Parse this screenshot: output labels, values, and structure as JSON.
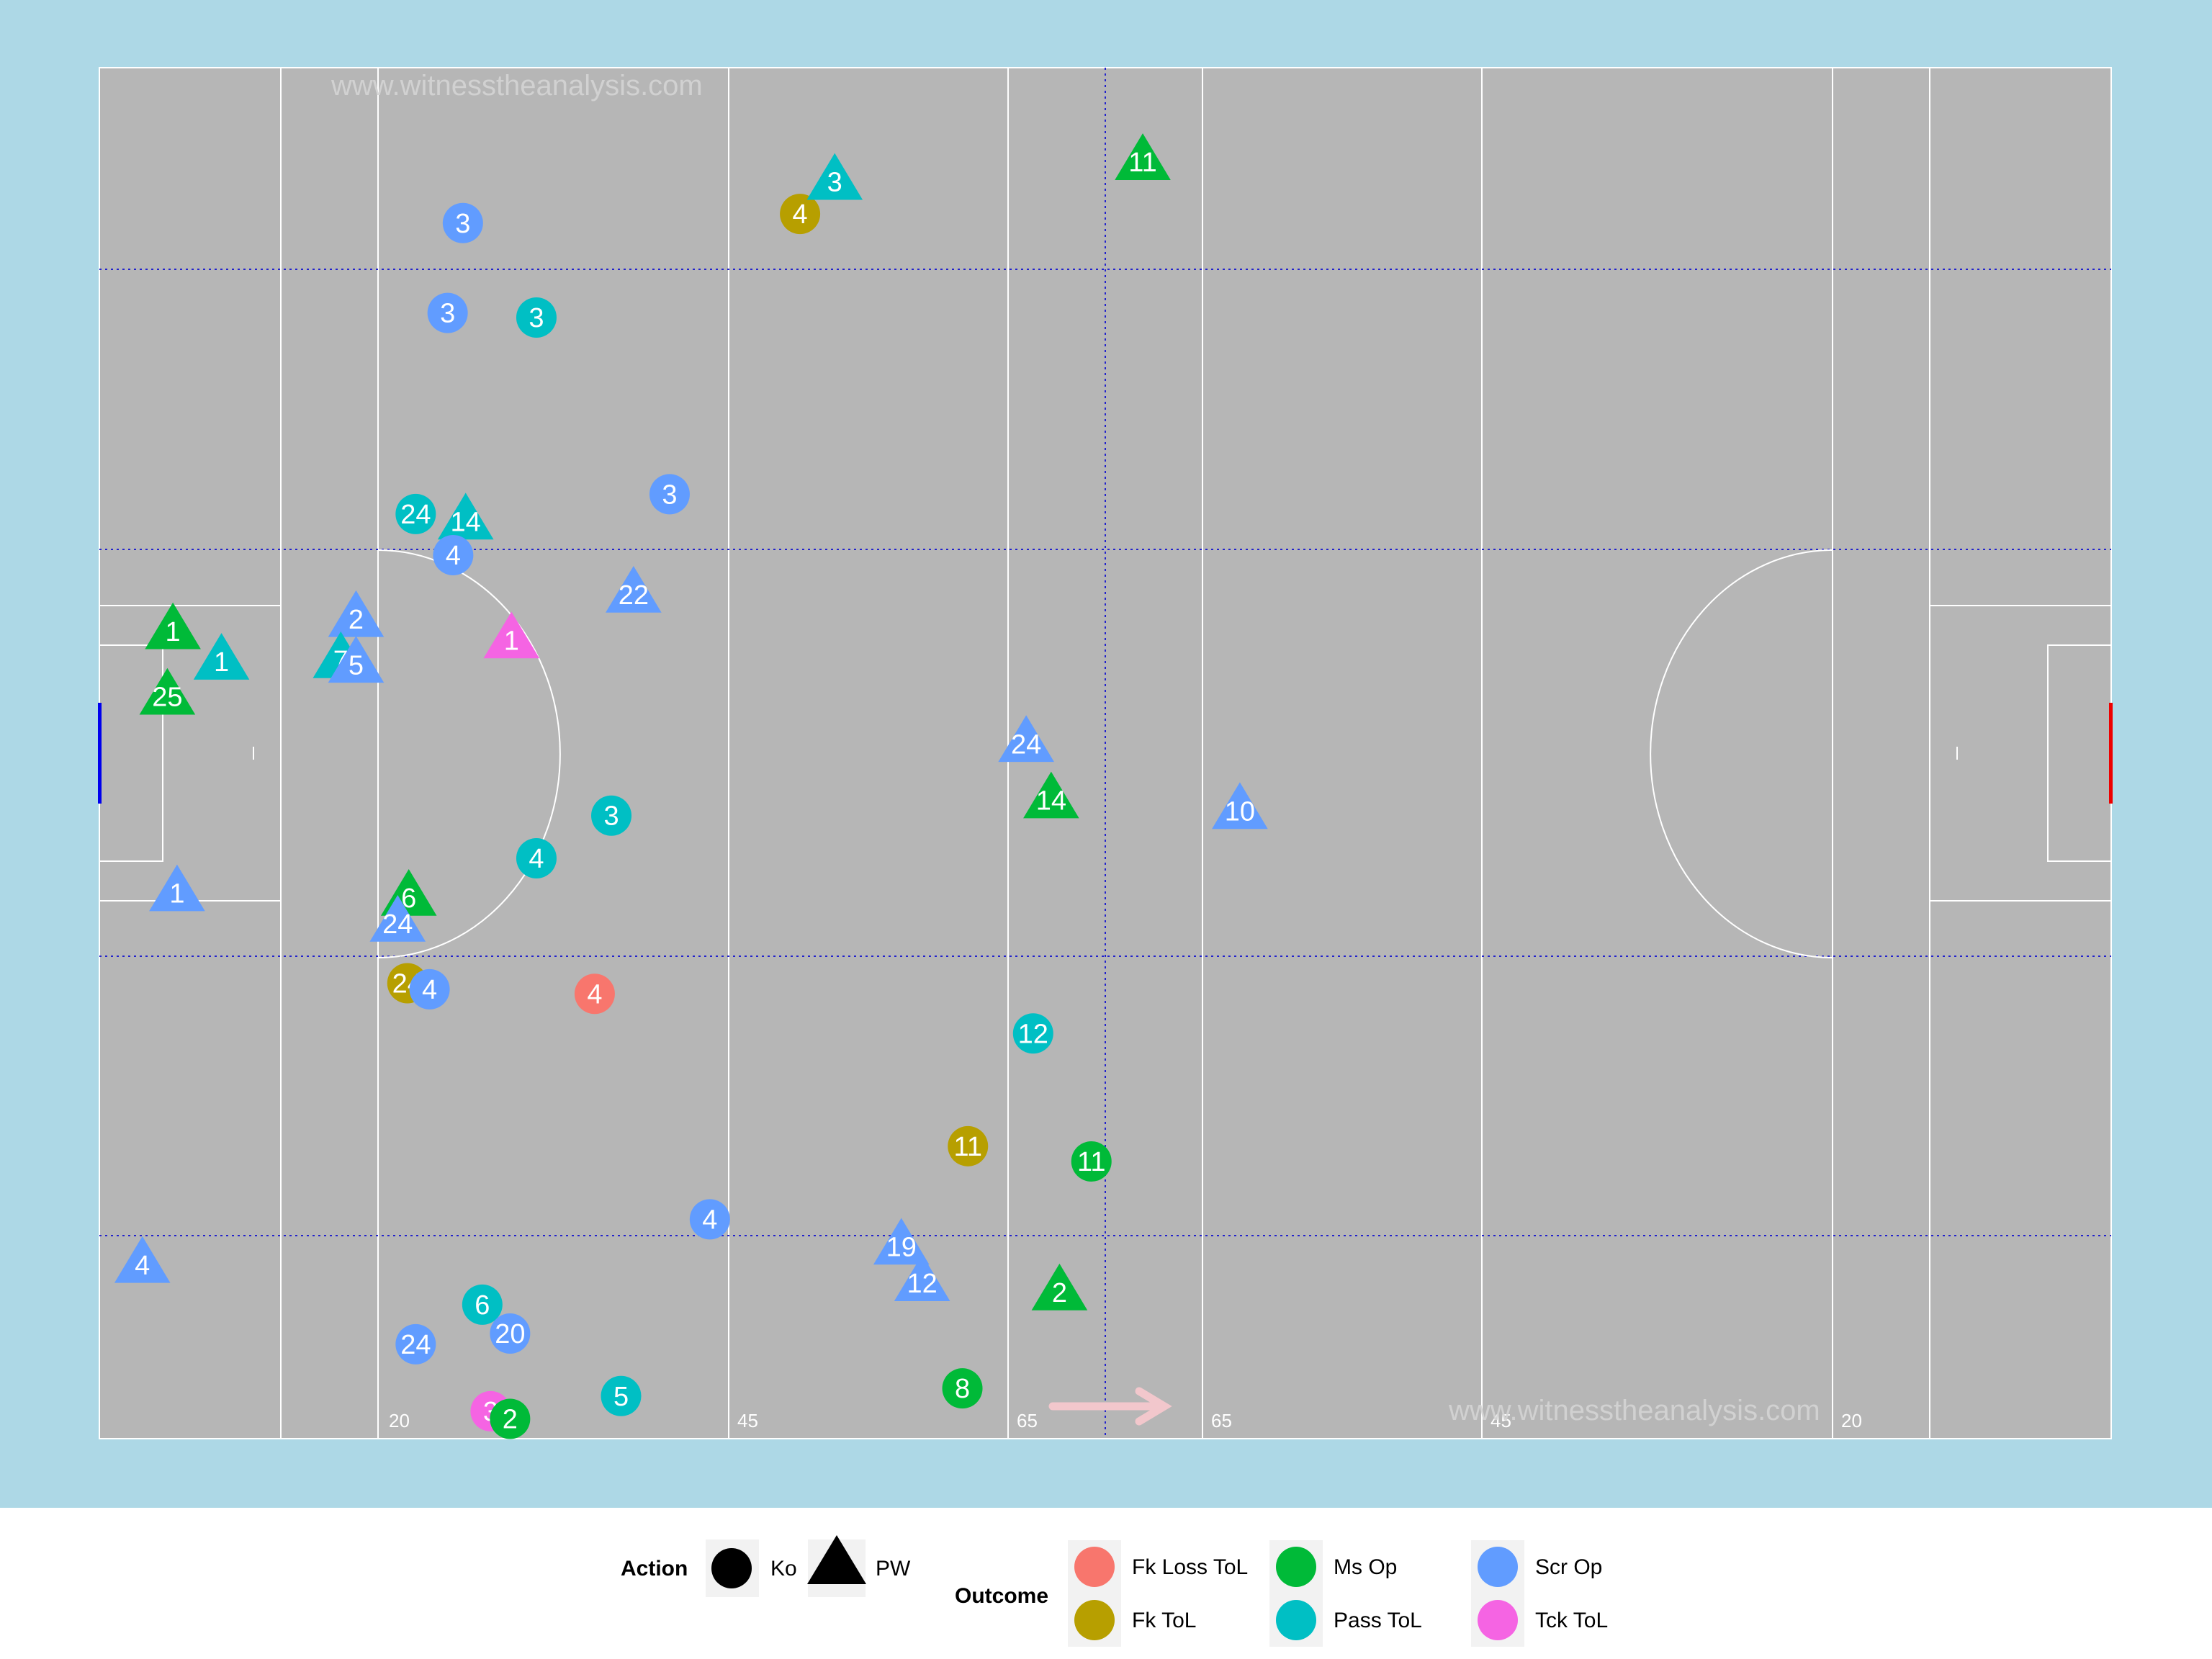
{
  "watermark": "www.witnesstheanalysis.com",
  "chart_data": {
    "type": "scatter",
    "xlim": [
      0,
      145
    ],
    "ylim": [
      0,
      90
    ],
    "direction_arrow": "left-to-right",
    "distance_markers": [
      "20",
      "45",
      "65",
      "65",
      "45",
      "20"
    ],
    "colors": {
      "Fk Loss ToL": "#F8766D",
      "Fk ToL": "#B79F00",
      "Ms Op": "#00BA38",
      "Pass ToL": "#00BFC4",
      "Scr Op": "#619CFF",
      "Tck ToL": "#F564E3"
    },
    "legend": {
      "action_title": "Action",
      "action_items": [
        {
          "label": "Ko",
          "shape": "circle"
        },
        {
          "label": "PW",
          "shape": "triangle"
        }
      ],
      "outcome_title": "Outcome",
      "outcome_items": [
        "Fk Loss ToL",
        "Fk ToL",
        "Ms Op",
        "Pass ToL",
        "Scr Op",
        "Tck ToL"
      ]
    },
    "points": [
      {
        "x": 26.2,
        "y": 79.8,
        "label": "3",
        "action": "Ko",
        "outcome": "Scr Op"
      },
      {
        "x": 25.1,
        "y": 73.9,
        "label": "3",
        "action": "Ko",
        "outcome": "Scr Op"
      },
      {
        "x": 31.5,
        "y": 73.6,
        "label": "3",
        "action": "Ko",
        "outcome": "Pass ToL"
      },
      {
        "x": 50.5,
        "y": 80.4,
        "label": "4",
        "action": "Ko",
        "outcome": "Fk ToL"
      },
      {
        "x": 53.0,
        "y": 82.5,
        "label": "3",
        "action": "PW",
        "outcome": "Pass ToL"
      },
      {
        "x": 75.2,
        "y": 83.8,
        "label": "11",
        "action": "PW",
        "outcome": "Ms Op"
      },
      {
        "x": 41.1,
        "y": 62.0,
        "label": "3",
        "action": "Ko",
        "outcome": "Scr Op"
      },
      {
        "x": 22.8,
        "y": 60.7,
        "label": "24",
        "action": "Ko",
        "outcome": "Pass ToL"
      },
      {
        "x": 26.4,
        "y": 60.2,
        "label": "14",
        "action": "PW",
        "outcome": "Pass ToL"
      },
      {
        "x": 25.5,
        "y": 58.0,
        "label": "4",
        "action": "Ko",
        "outcome": "Scr Op"
      },
      {
        "x": 38.5,
        "y": 55.4,
        "label": "22",
        "action": "PW",
        "outcome": "Scr Op"
      },
      {
        "x": 18.5,
        "y": 53.8,
        "label": "2",
        "action": "PW",
        "outcome": "Scr Op"
      },
      {
        "x": 29.7,
        "y": 52.4,
        "label": "1",
        "action": "PW",
        "outcome": "Tck ToL"
      },
      {
        "x": 5.3,
        "y": 53.0,
        "label": "1",
        "action": "PW",
        "outcome": "Ms Op"
      },
      {
        "x": 8.8,
        "y": 51.0,
        "label": "1",
        "action": "PW",
        "outcome": "Pass ToL"
      },
      {
        "x": 17.4,
        "y": 51.1,
        "label": "7",
        "action": "PW",
        "outcome": "Pass ToL"
      },
      {
        "x": 18.5,
        "y": 50.8,
        "label": "5",
        "action": "PW",
        "outcome": "Scr Op"
      },
      {
        "x": 4.9,
        "y": 48.7,
        "label": "25",
        "action": "PW",
        "outcome": "Ms Op"
      },
      {
        "x": 66.8,
        "y": 45.6,
        "label": "24",
        "action": "PW",
        "outcome": "Scr Op"
      },
      {
        "x": 68.6,
        "y": 41.9,
        "label": "14",
        "action": "PW",
        "outcome": "Ms Op"
      },
      {
        "x": 82.2,
        "y": 41.2,
        "label": "10",
        "action": "PW",
        "outcome": "Scr Op"
      },
      {
        "x": 36.9,
        "y": 40.9,
        "label": "3",
        "action": "Ko",
        "outcome": "Pass ToL"
      },
      {
        "x": 31.5,
        "y": 38.1,
        "label": "4",
        "action": "Ko",
        "outcome": "Pass ToL"
      },
      {
        "x": 22.3,
        "y": 35.5,
        "label": "6",
        "action": "PW",
        "outcome": "Ms Op"
      },
      {
        "x": 21.5,
        "y": 33.8,
        "label": "24",
        "action": "PW",
        "outcome": "Scr Op"
      },
      {
        "x": 5.6,
        "y": 35.8,
        "label": "1",
        "action": "PW",
        "outcome": "Scr Op"
      },
      {
        "x": 22.2,
        "y": 29.9,
        "label": "24",
        "action": "Ko",
        "outcome": "Fk ToL"
      },
      {
        "x": 23.8,
        "y": 29.5,
        "label": "4",
        "action": "Ko",
        "outcome": "Scr Op"
      },
      {
        "x": 35.7,
        "y": 29.2,
        "label": "4",
        "action": "Ko",
        "outcome": "Fk Loss ToL"
      },
      {
        "x": 67.3,
        "y": 26.6,
        "label": "12",
        "action": "Ko",
        "outcome": "Pass ToL"
      },
      {
        "x": 62.6,
        "y": 19.2,
        "label": "11",
        "action": "Ko",
        "outcome": "Fk ToL"
      },
      {
        "x": 71.5,
        "y": 18.2,
        "label": "11",
        "action": "Ko",
        "outcome": "Ms Op"
      },
      {
        "x": 44.0,
        "y": 14.4,
        "label": "4",
        "action": "Ko",
        "outcome": "Scr Op"
      },
      {
        "x": 57.8,
        "y": 12.6,
        "label": "19",
        "action": "PW",
        "outcome": "Scr Op"
      },
      {
        "x": 59.3,
        "y": 10.2,
        "label": "12",
        "action": "PW",
        "outcome": "Scr Op"
      },
      {
        "x": 69.2,
        "y": 9.6,
        "label": "2",
        "action": "PW",
        "outcome": "Ms Op"
      },
      {
        "x": 3.1,
        "y": 11.4,
        "label": "4",
        "action": "PW",
        "outcome": "Scr Op"
      },
      {
        "x": 27.6,
        "y": 8.8,
        "label": "6",
        "action": "Ko",
        "outcome": "Pass ToL"
      },
      {
        "x": 29.6,
        "y": 6.9,
        "label": "20",
        "action": "Ko",
        "outcome": "Scr Op"
      },
      {
        "x": 22.8,
        "y": 6.2,
        "label": "24",
        "action": "Ko",
        "outcome": "Scr Op"
      },
      {
        "x": 37.6,
        "y": 2.8,
        "label": "5",
        "action": "Ko",
        "outcome": "Pass ToL"
      },
      {
        "x": 62.2,
        "y": 3.3,
        "label": "8",
        "action": "Ko",
        "outcome": "Ms Op"
      },
      {
        "x": 28.2,
        "y": 1.8,
        "label": "3",
        "action": "Ko",
        "outcome": "Tck ToL"
      },
      {
        "x": 29.6,
        "y": 1.3,
        "label": "2",
        "action": "Ko",
        "outcome": "Ms Op"
      }
    ]
  }
}
